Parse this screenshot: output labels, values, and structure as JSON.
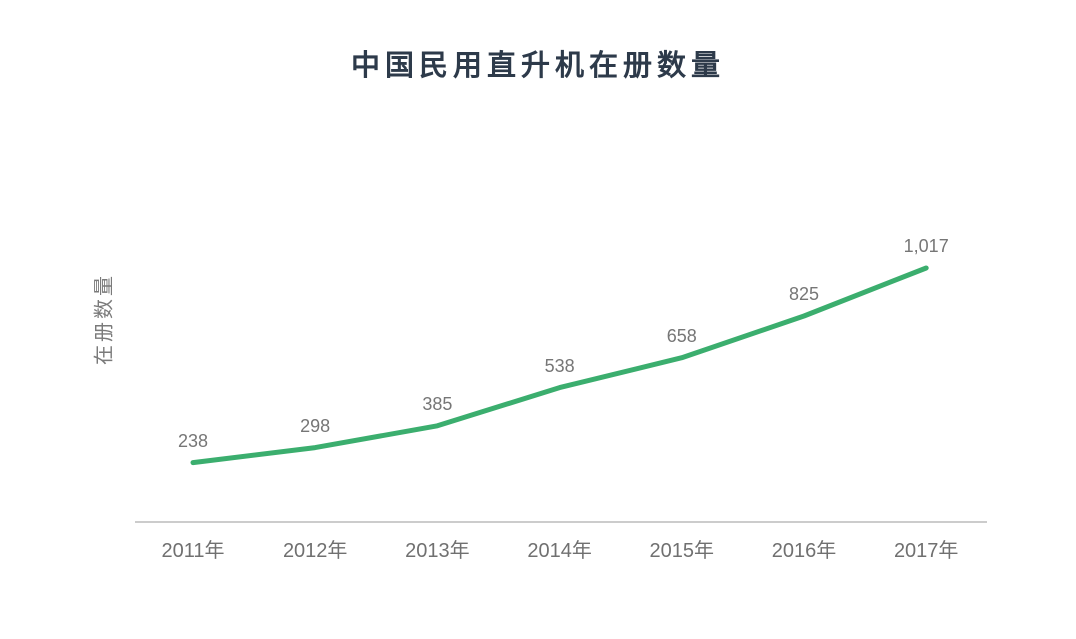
{
  "chart_data": {
    "type": "line",
    "title": "中国民用直升机在册数量",
    "categories": [
      "2011年",
      "2012年",
      "2013年",
      "2014年",
      "2015年",
      "2016年",
      "2017年"
    ],
    "values": [
      238,
      298,
      385,
      538,
      658,
      825,
      1017
    ],
    "value_labels": [
      "238",
      "298",
      "385",
      "538",
      "658",
      "825",
      "1,017"
    ],
    "xlabel": "",
    "ylabel": "在册数量",
    "ylim": [
      0,
      1080
    ],
    "grid": false,
    "legend": "none",
    "line_color": "#3bae6e",
    "axis_line_color": "#cccccc",
    "title_color": "#2d3a4a",
    "label_color": "#767676"
  }
}
